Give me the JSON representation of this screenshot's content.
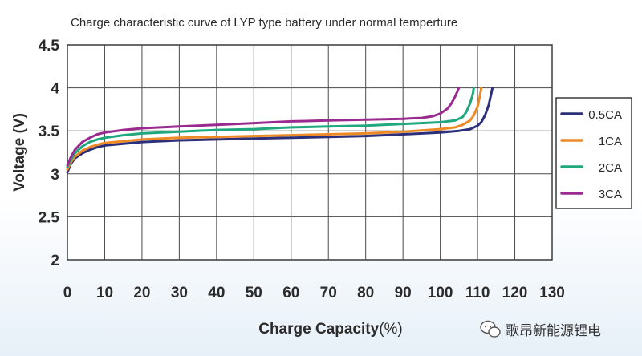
{
  "chart_data": {
    "type": "line",
    "title": "Charge characteristic curve of LYP type battery under normal temperture",
    "xlabel": "Charge Capacity",
    "xlabel_unit": "(%)",
    "ylabel": "Voltage (V)",
    "xlim": [
      0,
      130
    ],
    "ylim": [
      2,
      4.5
    ],
    "x_ticks": [
      "0",
      "10",
      "20",
      "30",
      "40",
      "50",
      "60",
      "70",
      "80",
      "90",
      "100",
      "110",
      "120",
      "130"
    ],
    "y_ticks": [
      "2",
      "2.5",
      "3",
      "3.5",
      "4",
      "4.5"
    ],
    "grid": true,
    "legend_position": "right",
    "series": [
      {
        "name": "0.5CA",
        "color": "#2c2f7a",
        "points": [
          [
            0,
            3.02
          ],
          [
            1,
            3.12
          ],
          [
            2,
            3.18
          ],
          [
            4,
            3.24
          ],
          [
            6,
            3.28
          ],
          [
            8,
            3.31
          ],
          [
            10,
            3.33
          ],
          [
            15,
            3.35
          ],
          [
            20,
            3.37
          ],
          [
            30,
            3.39
          ],
          [
            40,
            3.4
          ],
          [
            50,
            3.41
          ],
          [
            60,
            3.42
          ],
          [
            70,
            3.43
          ],
          [
            80,
            3.44
          ],
          [
            90,
            3.46
          ],
          [
            100,
            3.48
          ],
          [
            105,
            3.5
          ],
          [
            108,
            3.52
          ],
          [
            110,
            3.56
          ],
          [
            111,
            3.6
          ],
          [
            112,
            3.68
          ],
          [
            113,
            3.8
          ],
          [
            113.6,
            3.92
          ],
          [
            114,
            4.0
          ]
        ]
      },
      {
        "name": "1CA",
        "color": "#ee8a26",
        "points": [
          [
            0,
            3.05
          ],
          [
            1,
            3.14
          ],
          [
            2,
            3.2
          ],
          [
            4,
            3.27
          ],
          [
            6,
            3.31
          ],
          [
            8,
            3.34
          ],
          [
            10,
            3.36
          ],
          [
            15,
            3.38
          ],
          [
            20,
            3.4
          ],
          [
            30,
            3.42
          ],
          [
            40,
            3.43
          ],
          [
            50,
            3.44
          ],
          [
            60,
            3.45
          ],
          [
            70,
            3.46
          ],
          [
            80,
            3.47
          ],
          [
            90,
            3.49
          ],
          [
            100,
            3.52
          ],
          [
            104,
            3.54
          ],
          [
            106,
            3.57
          ],
          [
            108,
            3.62
          ],
          [
            109,
            3.68
          ],
          [
            110,
            3.78
          ],
          [
            110.6,
            3.9
          ],
          [
            111,
            4.0
          ]
        ]
      },
      {
        "name": "2CA",
        "color": "#1fa77e",
        "points": [
          [
            0,
            3.08
          ],
          [
            1,
            3.17
          ],
          [
            2,
            3.24
          ],
          [
            4,
            3.32
          ],
          [
            6,
            3.37
          ],
          [
            8,
            3.4
          ],
          [
            10,
            3.42
          ],
          [
            15,
            3.45
          ],
          [
            20,
            3.47
          ],
          [
            30,
            3.49
          ],
          [
            40,
            3.51
          ],
          [
            50,
            3.52
          ],
          [
            60,
            3.54
          ],
          [
            70,
            3.55
          ],
          [
            80,
            3.56
          ],
          [
            90,
            3.58
          ],
          [
            100,
            3.6
          ],
          [
            104,
            3.62
          ],
          [
            106,
            3.66
          ],
          [
            107,
            3.72
          ],
          [
            108,
            3.82
          ],
          [
            108.7,
            3.92
          ],
          [
            109,
            4.0
          ]
        ]
      },
      {
        "name": "3CA",
        "color": "#9b2a90",
        "points": [
          [
            0,
            3.1
          ],
          [
            1,
            3.2
          ],
          [
            2,
            3.28
          ],
          [
            4,
            3.37
          ],
          [
            6,
            3.42
          ],
          [
            8,
            3.46
          ],
          [
            10,
            3.48
          ],
          [
            15,
            3.51
          ],
          [
            20,
            3.53
          ],
          [
            30,
            3.55
          ],
          [
            40,
            3.57
          ],
          [
            50,
            3.59
          ],
          [
            60,
            3.61
          ],
          [
            70,
            3.62
          ],
          [
            80,
            3.63
          ],
          [
            90,
            3.64
          ],
          [
            95,
            3.65
          ],
          [
            98,
            3.67
          ],
          [
            100,
            3.7
          ],
          [
            102,
            3.76
          ],
          [
            103,
            3.82
          ],
          [
            104,
            3.9
          ],
          [
            105,
            4.0
          ]
        ]
      }
    ]
  },
  "watermark": {
    "text": "歌昂新能源锂电",
    "icon": "wechat-icon"
  }
}
